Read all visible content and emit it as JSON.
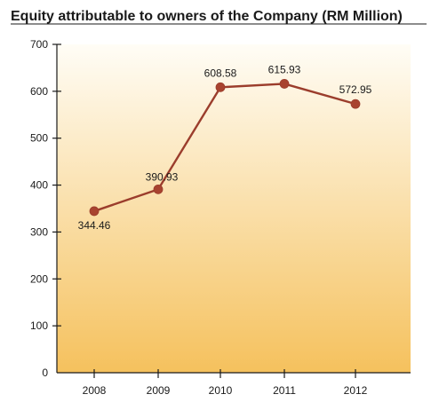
{
  "chart_data": {
    "type": "line",
    "title": "Equity attributable to owners of the Company (RM Million)",
    "categories": [
      "2008",
      "2009",
      "2010",
      "2011",
      "2012"
    ],
    "series": [
      {
        "values": [
          344.46,
          390.93,
          608.58,
          615.93,
          572.95
        ]
      }
    ],
    "data_labels": [
      "344.46",
      "390.93",
      "608.58",
      "615.93",
      "572.95"
    ],
    "y_ticks": [
      "0",
      "100",
      "200",
      "300",
      "400",
      "500",
      "600",
      "700"
    ],
    "ylim": [
      0,
      700
    ],
    "grid": false,
    "legend": "none",
    "colors": {
      "line": "#9b3d2c",
      "marker": "#a8432f",
      "background_top": "#fffdf6",
      "background_bottom": "#f5c15d",
      "axis": "#1a1a1a"
    }
  }
}
